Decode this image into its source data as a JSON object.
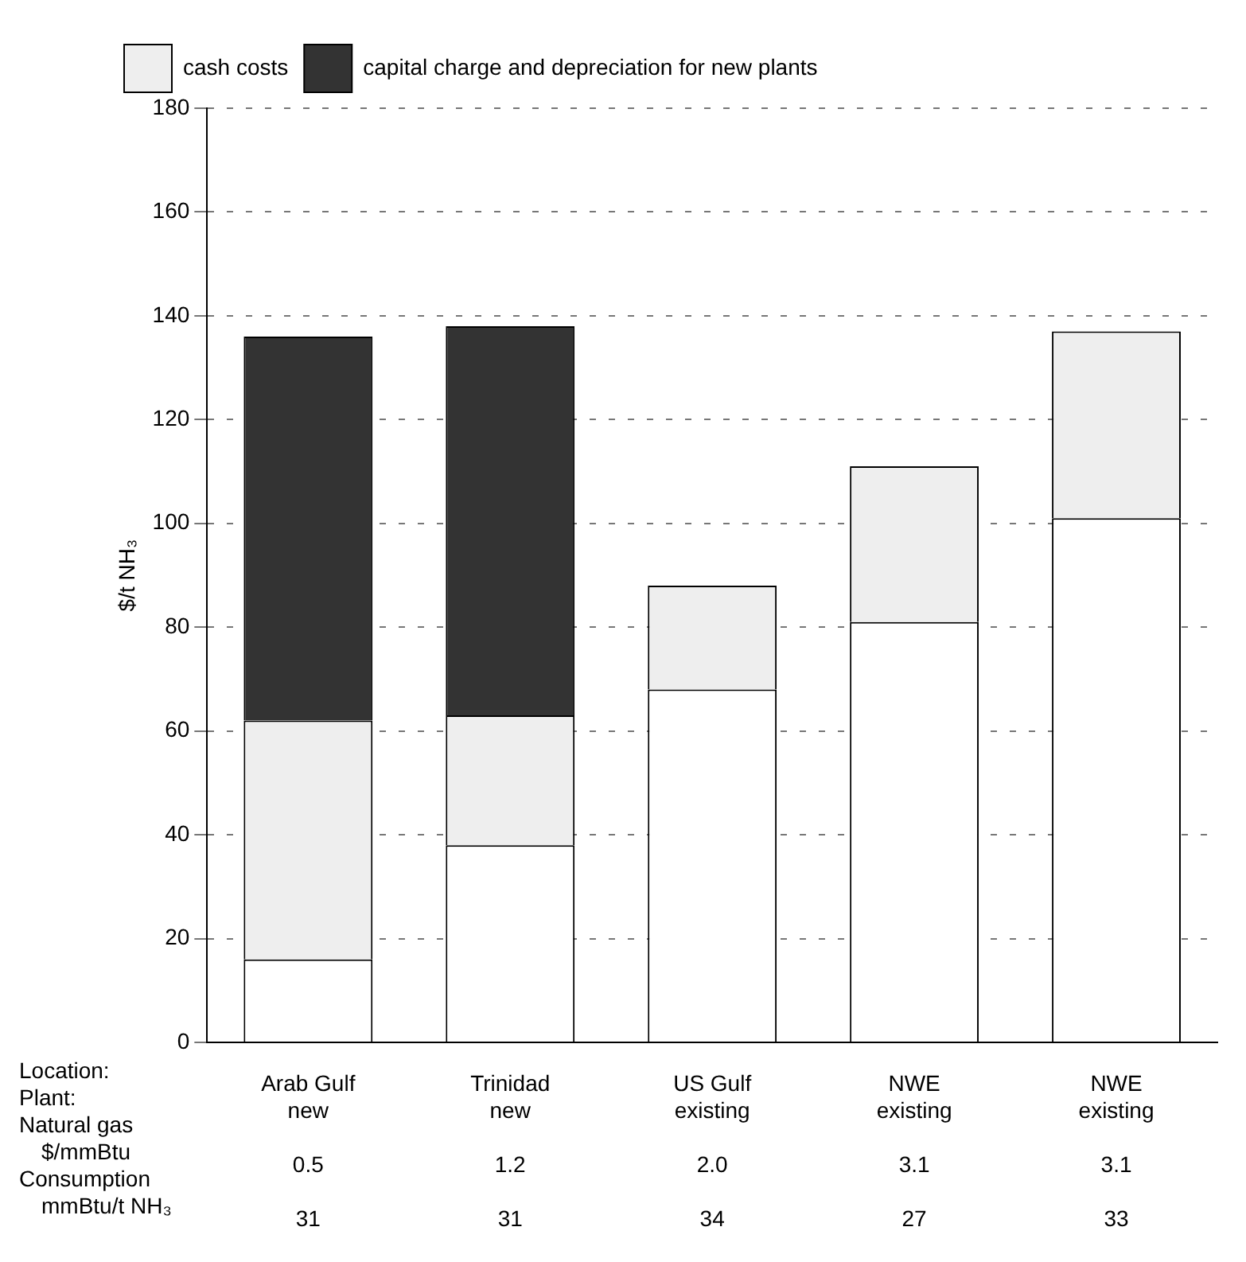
{
  "chart_data": {
    "type": "bar",
    "stacked": true,
    "ylabel": "$/t NH₃",
    "categories": [
      "Arab Gulf\nnew\n0.5\n31",
      "Trinidad\nnew\n1.2\n31",
      "US Gulf\nexisting\n2.0\n34",
      "NWE\nexisting\n3.1\n27",
      "NWE\nexisting\n3.1\n33"
    ],
    "series": [
      {
        "color": "#ffffff",
        "values": [
          16,
          38,
          68,
          81,
          101
        ]
      },
      {
        "name": "cash costs",
        "color": "#eeeeee",
        "values": [
          46,
          25,
          20,
          30,
          36
        ]
      },
      {
        "name": "capital charge and depreciation for new plants",
        "color": "#333333",
        "values": [
          74,
          75,
          0,
          0,
          0
        ]
      }
    ],
    "ylim": [
      0,
      180
    ],
    "yticks": [
      0,
      20,
      40,
      60,
      80,
      100,
      120,
      140,
      160,
      180
    ],
    "grid": "y",
    "legend": "top left",
    "annotations": [
      "Location:",
      "Plant:",
      "Natural gas\n$/mmBtu",
      "Consumption\nmmBtu/t NH₃"
    ]
  }
}
